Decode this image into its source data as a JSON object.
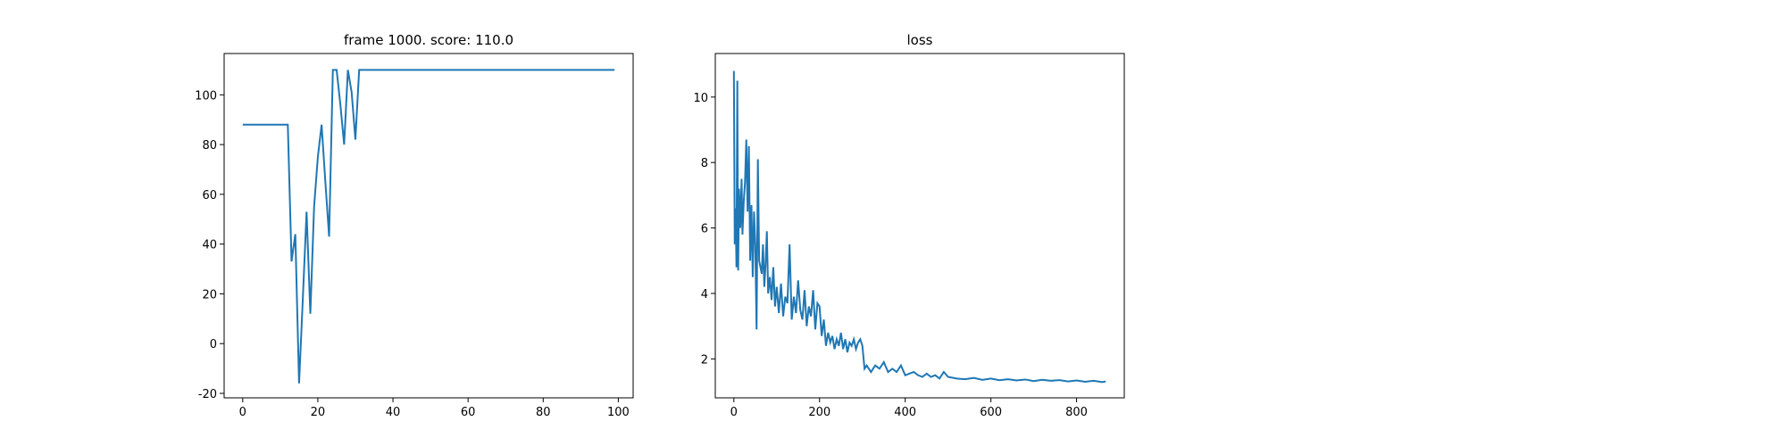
{
  "chart_data": [
    {
      "type": "line",
      "title": "frame 1000. score: 110.0",
      "x": [
        0,
        1,
        2,
        3,
        4,
        5,
        6,
        7,
        8,
        9,
        10,
        11,
        12,
        13,
        14,
        15,
        16,
        17,
        18,
        19,
        20,
        21,
        22,
        23,
        24,
        25,
        26,
        27,
        28,
        29,
        30,
        31,
        32,
        33,
        34,
        35,
        36,
        37,
        38,
        39,
        40,
        41,
        42,
        43,
        44,
        45,
        46,
        47,
        48,
        49,
        50,
        51,
        52,
        53,
        54,
        55,
        56,
        57,
        58,
        59,
        60,
        61,
        62,
        63,
        64,
        65,
        66,
        67,
        68,
        69,
        70,
        71,
        72,
        73,
        74,
        75,
        76,
        77,
        78,
        79,
        80,
        81,
        82,
        83,
        84,
        85,
        86,
        87,
        88,
        89,
        90,
        91,
        92,
        93,
        94,
        95,
        96,
        97,
        98,
        99
      ],
      "values": [
        88,
        88,
        88,
        88,
        88,
        88,
        88,
        88,
        88,
        88,
        88,
        88,
        88,
        33,
        44,
        -16,
        18,
        53,
        12,
        55,
        75,
        88,
        65,
        43,
        110,
        110,
        96,
        80,
        110,
        101,
        82,
        110,
        110,
        110,
        110,
        110,
        110,
        110,
        110,
        110,
        110,
        110,
        110,
        110,
        110,
        110,
        110,
        110,
        110,
        110,
        110,
        110,
        110,
        110,
        110,
        110,
        110,
        110,
        110,
        110,
        110,
        110,
        110,
        110,
        110,
        110,
        110,
        110,
        110,
        110,
        110,
        110,
        110,
        110,
        110,
        110,
        110,
        110,
        110,
        110,
        110,
        110,
        110,
        110,
        110,
        110,
        110,
        110,
        110,
        110,
        110,
        110,
        110,
        110,
        110,
        110,
        110,
        110,
        110,
        110
      ],
      "color": "#1f77b4",
      "xlim": [
        -4.95,
        103.95
      ],
      "ylim": [
        -21.8,
        116.6
      ],
      "xticks": [
        0,
        20,
        40,
        60,
        80,
        100
      ],
      "yticks": [
        -20,
        0,
        20,
        40,
        60,
        80,
        100
      ]
    },
    {
      "type": "line",
      "title": "loss",
      "x": [
        0,
        2,
        4,
        6,
        8,
        10,
        12,
        15,
        18,
        20,
        23,
        26,
        29,
        32,
        35,
        38,
        41,
        44,
        47,
        50,
        53,
        56,
        59,
        62,
        65,
        68,
        71,
        74,
        77,
        80,
        84,
        88,
        92,
        96,
        100,
        105,
        110,
        115,
        120,
        125,
        130,
        135,
        140,
        145,
        150,
        155,
        160,
        165,
        170,
        175,
        180,
        185,
        190,
        195,
        200,
        205,
        210,
        215,
        220,
        225,
        230,
        235,
        240,
        245,
        250,
        255,
        260,
        265,
        270,
        275,
        280,
        285,
        290,
        295,
        300,
        305,
        310,
        320,
        330,
        340,
        350,
        360,
        370,
        380,
        390,
        400,
        410,
        420,
        430,
        440,
        450,
        460,
        470,
        480,
        490,
        500,
        520,
        540,
        560,
        580,
        600,
        620,
        640,
        660,
        680,
        700,
        720,
        740,
        760,
        780,
        800,
        820,
        840,
        860,
        868
      ],
      "values": [
        10.8,
        5.5,
        6.6,
        4.8,
        10.5,
        4.7,
        7.2,
        6.0,
        7.5,
        5.8,
        6.8,
        7.4,
        8.7,
        6.5,
        8.5,
        5.0,
        6.7,
        4.5,
        6.5,
        5.5,
        2.9,
        8.1,
        5.0,
        4.8,
        4.6,
        5.5,
        4.2,
        4.9,
        5.9,
        4.0,
        4.5,
        3.8,
        4.8,
        3.6,
        4.2,
        3.4,
        4.3,
        3.3,
        3.9,
        3.7,
        5.5,
        3.2,
        3.9,
        3.4,
        4.4,
        3.5,
        3.2,
        4.1,
        3.0,
        3.6,
        3.3,
        4.1,
        2.9,
        3.7,
        3.6,
        2.7,
        3.2,
        2.4,
        2.8,
        2.5,
        2.7,
        2.3,
        2.6,
        2.4,
        2.8,
        2.3,
        2.6,
        2.2,
        2.5,
        2.4,
        2.6,
        2.3,
        2.5,
        2.6,
        2.4,
        1.7,
        1.8,
        1.6,
        1.8,
        1.7,
        1.9,
        1.6,
        1.7,
        1.6,
        1.8,
        1.5,
        1.55,
        1.6,
        1.5,
        1.45,
        1.55,
        1.45,
        1.5,
        1.4,
        1.6,
        1.45,
        1.4,
        1.38,
        1.42,
        1.36,
        1.4,
        1.35,
        1.38,
        1.34,
        1.37,
        1.32,
        1.36,
        1.33,
        1.35,
        1.31,
        1.34,
        1.3,
        1.33,
        1.29,
        1.31
      ],
      "color": "#1f77b4",
      "xlim": [
        -43.4,
        911.4
      ],
      "ylim": [
        0.81,
        11.33
      ],
      "xticks": [
        0,
        200,
        400,
        600,
        800
      ],
      "yticks": [
        2,
        4,
        6,
        8,
        10
      ]
    }
  ]
}
